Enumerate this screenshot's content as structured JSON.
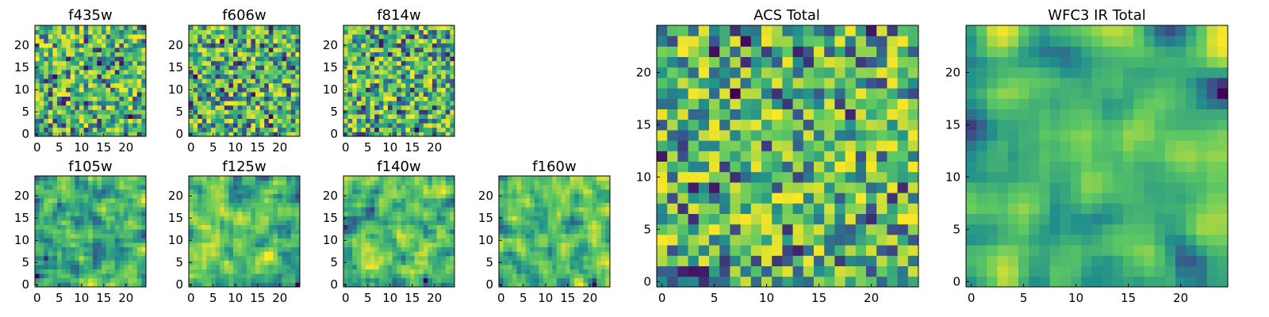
{
  "chart_data": [
    {
      "id": "f435w",
      "type": "heatmap",
      "title": "f435w",
      "grid_size": 25,
      "xticks": [
        "0",
        "5",
        "10",
        "15",
        "20"
      ],
      "yticks": [
        "0",
        "5",
        "10",
        "15",
        "20"
      ],
      "colormap": "viridis",
      "seed": 11,
      "smoothing": 0
    },
    {
      "id": "f606w",
      "type": "heatmap",
      "title": "f606w",
      "grid_size": 25,
      "xticks": [
        "0",
        "5",
        "10",
        "15",
        "20"
      ],
      "yticks": [
        "0",
        "5",
        "10",
        "15",
        "20"
      ],
      "colormap": "viridis",
      "seed": 23,
      "smoothing": 0
    },
    {
      "id": "f814w",
      "type": "heatmap",
      "title": "f814w",
      "grid_size": 25,
      "xticks": [
        "0",
        "5",
        "10",
        "15",
        "20"
      ],
      "yticks": [
        "0",
        "5",
        "10",
        "15",
        "20"
      ],
      "colormap": "viridis",
      "seed": 37,
      "smoothing": 0
    },
    {
      "id": "f105w",
      "type": "heatmap",
      "title": "f105w",
      "grid_size": 25,
      "xticks": [
        "0",
        "5",
        "10",
        "15",
        "20"
      ],
      "yticks": [
        "0",
        "5",
        "10",
        "15",
        "20"
      ],
      "colormap": "viridis",
      "seed": 41,
      "smoothing": 1
    },
    {
      "id": "f125w",
      "type": "heatmap",
      "title": "f125w",
      "grid_size": 25,
      "xticks": [
        "0",
        "5",
        "10",
        "15",
        "20"
      ],
      "yticks": [
        "0",
        "5",
        "10",
        "15",
        "20"
      ],
      "colormap": "viridis",
      "seed": 53,
      "smoothing": 1
    },
    {
      "id": "f140w",
      "type": "heatmap",
      "title": "f140w",
      "grid_size": 25,
      "xticks": [
        "0",
        "5",
        "10",
        "15",
        "20"
      ],
      "yticks": [
        "0",
        "5",
        "10",
        "15",
        "20"
      ],
      "colormap": "viridis",
      "seed": 67,
      "smoothing": 1
    },
    {
      "id": "f160w",
      "type": "heatmap",
      "title": "f160w",
      "grid_size": 25,
      "xticks": [
        "0",
        "5",
        "10",
        "15",
        "20"
      ],
      "yticks": [
        "0",
        "5",
        "10",
        "15",
        "20"
      ],
      "colormap": "viridis",
      "seed": 79,
      "smoothing": 1
    },
    {
      "id": "acs_total",
      "type": "heatmap",
      "title": "ACS Total",
      "grid_size": 25,
      "xticks": [
        "0",
        "5",
        "10",
        "15",
        "20"
      ],
      "yticks": [
        "0",
        "5",
        "10",
        "15",
        "20"
      ],
      "colormap": "viridis",
      "seed": 97,
      "smoothing": 0
    },
    {
      "id": "wfc3_total",
      "type": "heatmap",
      "title": "WFC3 IR Total",
      "grid_size": 25,
      "xticks": [
        "0",
        "5",
        "10",
        "15",
        "20"
      ],
      "yticks": [
        "0",
        "5",
        "10",
        "15",
        "20"
      ],
      "colormap": "viridis",
      "seed": 113,
      "smoothing": 2
    }
  ],
  "colors": {
    "viridis": [
      "#440154",
      "#3b528b",
      "#21918c",
      "#5ec962",
      "#fde725"
    ]
  }
}
